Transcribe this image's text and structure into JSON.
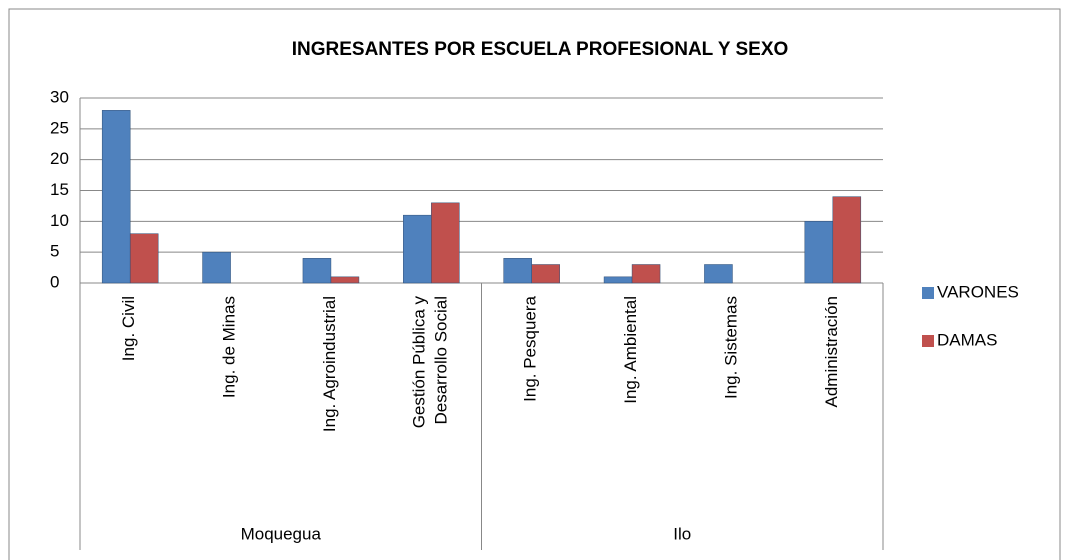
{
  "chart_data": {
    "type": "bar",
    "title": "INGRESANTES POR ESCUELA PROFESIONAL Y SEXO",
    "categories": [
      "Ing. Civil",
      "Ing. de Minas",
      "Ing. Agroindustrial",
      "Gestión Pública y\nDesarrollo Social",
      "Ing. Pesquera",
      "Ing. Ambiental",
      "Ing. Sistemas",
      "Administración"
    ],
    "category_groups": [
      "Moquegua",
      "Moquegua",
      "Moquegua",
      "Moquegua",
      "Ilo",
      "Ilo",
      "Ilo",
      "Ilo"
    ],
    "series": [
      {
        "name": "VARONES",
        "color": "#4f81bd",
        "values": [
          28,
          5,
          4,
          11,
          4,
          1,
          3,
          10
        ]
      },
      {
        "name": "DAMAS",
        "color": "#c0504d",
        "values": [
          8,
          0,
          1,
          13,
          3,
          3,
          0,
          14
        ]
      }
    ],
    "ylim": [
      0,
      30
    ],
    "yticks": [
      0,
      5,
      10,
      15,
      20,
      25,
      30
    ],
    "grid": true,
    "legend": "right"
  }
}
